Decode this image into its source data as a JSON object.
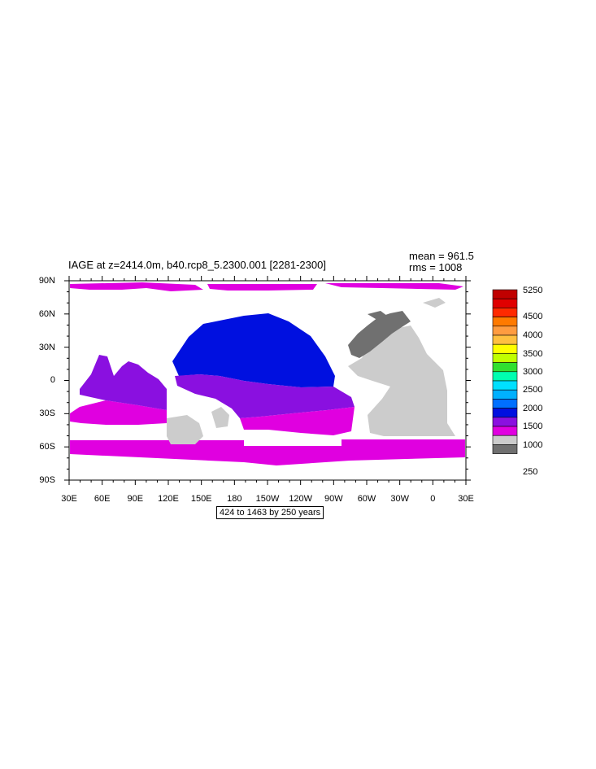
{
  "title": "IAGE at z=2414.0m, b40.rcp8_5.2300.001 [2281-2300]",
  "stats": {
    "mean": "mean = 961.5",
    "rms": "rms = 1008"
  },
  "subtitle": "424 to 1463 by 250 years",
  "lat_ticks": [
    "90N",
    "60N",
    "30N",
    "0",
    "30S",
    "60S",
    "90S"
  ],
  "lon_ticks": [
    "30E",
    "60E",
    "90E",
    "120E",
    "150E",
    "180",
    "150W",
    "120W",
    "90W",
    "60W",
    "30W",
    "0",
    "30E"
  ],
  "colorbar": {
    "labels": [
      "5250",
      "4500",
      "4000",
      "3500",
      "3000",
      "2500",
      "2000",
      "1500",
      "1000",
      "250"
    ],
    "colors": [
      "#c00000",
      "#e00000",
      "#ff2a00",
      "#ff7a00",
      "#ff9c40",
      "#ffc040",
      "#ffff00",
      "#c0ff00",
      "#30e030",
      "#00ffb0",
      "#00e0ff",
      "#00b0ff",
      "#0070ff",
      "#0010e0",
      "#8a10e0",
      "#e000e0",
      "#cccccc",
      "#707070"
    ]
  },
  "field_colors": {
    "magenta": "#e000e0",
    "purple": "#8a10e0",
    "blue": "#0010e0",
    "light_gray": "#cccccc",
    "dark_gray": "#707070"
  }
}
